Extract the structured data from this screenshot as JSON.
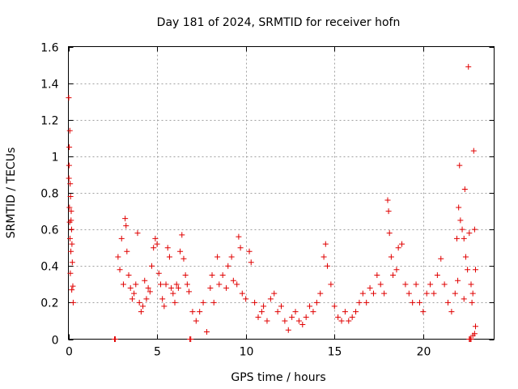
{
  "chart_data": {
    "type": "scatter",
    "title": "Day 181 of 2024, SRMTID for receiver hofn",
    "xlabel": "GPS time / hours",
    "ylabel": "SRMTID / TECUs",
    "xlim": [
      0,
      24
    ],
    "ylim": [
      0,
      1.6
    ],
    "xticks": [
      "0",
      "5",
      "10",
      "15",
      "20"
    ],
    "yticks": [
      "0",
      "0.2",
      "0.4",
      "0.6",
      "0.8",
      "1",
      "1.2",
      "1.4",
      "1.6"
    ],
    "grid": true,
    "marker": "plus",
    "color": "#e00000",
    "series": [
      {
        "name": "SRMTID",
        "points": [
          [
            0.02,
            1.32
          ],
          [
            0.05,
            1.05
          ],
          [
            0.08,
            1.14
          ],
          [
            0.04,
            0.95
          ],
          [
            0.1,
            0.85
          ],
          [
            0.12,
            0.78
          ],
          [
            0.06,
            0.72
          ],
          [
            0.15,
            0.65
          ],
          [
            0.18,
            0.6
          ],
          [
            0.09,
            0.55
          ],
          [
            0.2,
            0.52
          ],
          [
            0.14,
            0.48
          ],
          [
            0.22,
            0.42
          ],
          [
            0.11,
            0.36
          ],
          [
            0.25,
            0.29
          ],
          [
            0.19,
            0.27
          ],
          [
            0.27,
            0.2
          ],
          [
            0.03,
            0.88
          ],
          [
            0.16,
            0.7
          ],
          [
            0.07,
            0.64
          ],
          [
            2.6,
            0.0
          ],
          [
            2.65,
            0.0
          ],
          [
            6.85,
            0.0
          ],
          [
            6.9,
            0.0
          ],
          [
            22.6,
            0.0
          ],
          [
            22.65,
            0.0
          ],
          [
            22.7,
            0.0
          ],
          [
            22.8,
            0.02
          ],
          [
            22.9,
            0.03
          ],
          [
            2.8,
            0.45
          ],
          [
            2.9,
            0.38
          ],
          [
            3.0,
            0.55
          ],
          [
            3.1,
            0.3
          ],
          [
            3.2,
            0.66
          ],
          [
            3.25,
            0.62
          ],
          [
            3.3,
            0.48
          ],
          [
            3.4,
            0.35
          ],
          [
            3.5,
            0.28
          ],
          [
            3.6,
            0.22
          ],
          [
            3.7,
            0.25
          ],
          [
            3.8,
            0.3
          ],
          [
            3.9,
            0.58
          ],
          [
            4.0,
            0.2
          ],
          [
            4.1,
            0.15
          ],
          [
            4.2,
            0.18
          ],
          [
            4.3,
            0.32
          ],
          [
            4.4,
            0.22
          ],
          [
            4.5,
            0.28
          ],
          [
            4.6,
            0.26
          ],
          [
            4.7,
            0.4
          ],
          [
            4.8,
            0.5
          ],
          [
            4.9,
            0.55
          ],
          [
            5.0,
            0.52
          ],
          [
            5.1,
            0.36
          ],
          [
            5.2,
            0.3
          ],
          [
            5.3,
            0.22
          ],
          [
            5.4,
            0.18
          ],
          [
            5.5,
            0.3
          ],
          [
            5.6,
            0.5
          ],
          [
            5.7,
            0.45
          ],
          [
            5.8,
            0.28
          ],
          [
            5.9,
            0.25
          ],
          [
            6.0,
            0.2
          ],
          [
            6.1,
            0.3
          ],
          [
            6.2,
            0.28
          ],
          [
            6.3,
            0.48
          ],
          [
            6.4,
            0.57
          ],
          [
            6.5,
            0.44
          ],
          [
            6.6,
            0.35
          ],
          [
            6.7,
            0.3
          ],
          [
            6.8,
            0.26
          ],
          [
            7.0,
            0.15
          ],
          [
            7.2,
            0.1
          ],
          [
            7.4,
            0.15
          ],
          [
            7.6,
            0.2
          ],
          [
            7.8,
            0.04
          ],
          [
            8.0,
            0.28
          ],
          [
            8.1,
            0.35
          ],
          [
            8.2,
            0.2
          ],
          [
            8.4,
            0.45
          ],
          [
            8.5,
            0.3
          ],
          [
            8.7,
            0.35
          ],
          [
            8.9,
            0.28
          ],
          [
            9.0,
            0.4
          ],
          [
            9.2,
            0.45
          ],
          [
            9.3,
            0.32
          ],
          [
            9.5,
            0.3
          ],
          [
            9.6,
            0.56
          ],
          [
            9.7,
            0.5
          ],
          [
            9.8,
            0.25
          ],
          [
            10.0,
            0.22
          ],
          [
            10.2,
            0.48
          ],
          [
            10.3,
            0.42
          ],
          [
            10.5,
            0.2
          ],
          [
            10.7,
            0.12
          ],
          [
            10.9,
            0.15
          ],
          [
            11.0,
            0.18
          ],
          [
            11.2,
            0.1
          ],
          [
            11.4,
            0.22
          ],
          [
            11.6,
            0.25
          ],
          [
            11.8,
            0.15
          ],
          [
            12.0,
            0.18
          ],
          [
            12.2,
            0.1
          ],
          [
            12.4,
            0.05
          ],
          [
            12.6,
            0.12
          ],
          [
            12.8,
            0.15
          ],
          [
            13.0,
            0.1
          ],
          [
            13.2,
            0.08
          ],
          [
            13.4,
            0.12
          ],
          [
            13.6,
            0.18
          ],
          [
            13.8,
            0.15
          ],
          [
            14.0,
            0.2
          ],
          [
            14.2,
            0.25
          ],
          [
            14.4,
            0.45
          ],
          [
            14.5,
            0.52
          ],
          [
            14.6,
            0.4
          ],
          [
            14.8,
            0.3
          ],
          [
            15.0,
            0.18
          ],
          [
            15.2,
            0.12
          ],
          [
            15.4,
            0.1
          ],
          [
            15.6,
            0.15
          ],
          [
            15.8,
            0.1
          ],
          [
            16.0,
            0.12
          ],
          [
            16.2,
            0.15
          ],
          [
            16.4,
            0.2
          ],
          [
            16.6,
            0.25
          ],
          [
            16.8,
            0.2
          ],
          [
            17.0,
            0.28
          ],
          [
            17.2,
            0.25
          ],
          [
            17.4,
            0.35
          ],
          [
            17.6,
            0.3
          ],
          [
            17.8,
            0.25
          ],
          [
            18.0,
            0.76
          ],
          [
            18.05,
            0.7
          ],
          [
            18.1,
            0.58
          ],
          [
            18.2,
            0.45
          ],
          [
            18.3,
            0.35
          ],
          [
            18.5,
            0.38
          ],
          [
            18.6,
            0.5
          ],
          [
            18.8,
            0.52
          ],
          [
            19.0,
            0.3
          ],
          [
            19.2,
            0.25
          ],
          [
            19.4,
            0.2
          ],
          [
            19.6,
            0.3
          ],
          [
            19.8,
            0.2
          ],
          [
            20.0,
            0.15
          ],
          [
            20.2,
            0.25
          ],
          [
            20.4,
            0.3
          ],
          [
            20.6,
            0.25
          ],
          [
            20.8,
            0.35
          ],
          [
            21.0,
            0.44
          ],
          [
            21.2,
            0.3
          ],
          [
            21.4,
            0.2
          ],
          [
            21.6,
            0.15
          ],
          [
            21.8,
            0.25
          ],
          [
            21.9,
            0.55
          ],
          [
            22.0,
            0.72
          ],
          [
            22.05,
            0.95
          ],
          [
            22.1,
            0.65
          ],
          [
            22.2,
            0.6
          ],
          [
            22.3,
            0.55
          ],
          [
            22.35,
            0.82
          ],
          [
            22.4,
            0.45
          ],
          [
            22.5,
            0.38
          ],
          [
            22.55,
            1.49
          ],
          [
            22.6,
            0.58
          ],
          [
            22.7,
            0.3
          ],
          [
            22.8,
            0.25
          ],
          [
            22.9,
            0.6
          ],
          [
            22.85,
            1.03
          ],
          [
            22.75,
            0.2
          ],
          [
            22.95,
            0.07
          ],
          [
            22.95,
            0.38
          ],
          [
            22.3,
            0.22
          ],
          [
            21.95,
            0.32
          ]
        ]
      }
    ]
  }
}
